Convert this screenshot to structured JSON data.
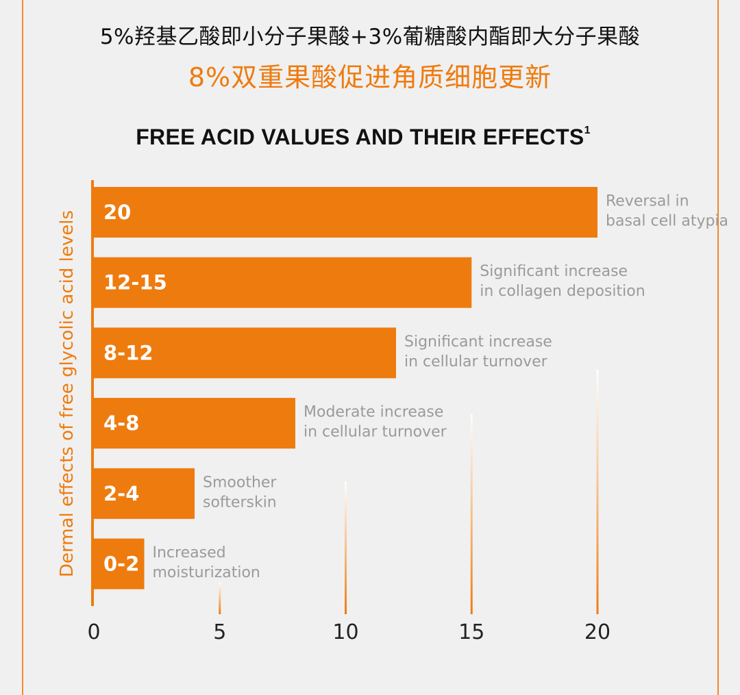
{
  "header": {
    "subtitle": "5%羟基乙酸即小分子果酸+3%葡糖酸内酯即大分子果酸",
    "headline": "8%双重果酸促进角质细胞更新"
  },
  "colors": {
    "accent": "#ee7b0e",
    "bar": "#ee7b0e",
    "effect_text": "#9a9a9a",
    "background": "#f0f0f0"
  },
  "chart_data": {
    "type": "bar",
    "orientation": "horizontal",
    "title": "FREE ACID VALUES AND THEIR EFFECTS",
    "title_footnote": "1",
    "xlabel": "",
    "ylabel": "Dermal effects of free glycolic acid levels",
    "xlim": [
      0,
      20
    ],
    "xticks": [
      0,
      5,
      10,
      15,
      20
    ],
    "categories": [
      "20",
      "12-15",
      "8-12",
      "4-8",
      "2-4",
      "0-2"
    ],
    "values": [
      20,
      15,
      12,
      8,
      4,
      2
    ],
    "effects": [
      [
        "Reversal in",
        "basal cell atypia"
      ],
      [
        "Significant increase",
        "in collagen deposition"
      ],
      [
        "Significant increase",
        "in cellular turnover"
      ],
      [
        "Moderate increase",
        "in cellular turnover"
      ],
      [
        "Smoother",
        "softerskin"
      ],
      [
        "Increased",
        "moisturization"
      ]
    ]
  }
}
